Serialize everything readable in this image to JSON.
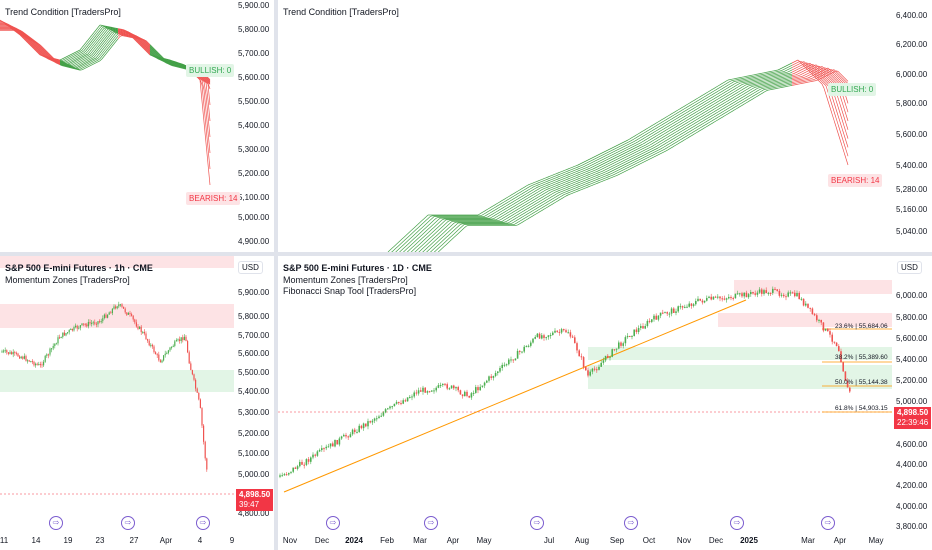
{
  "colors": {
    "bull": "#43a047",
    "bear": "#ef5350",
    "amber": "#fbc02d",
    "fib": "#ff9800",
    "event": "#7b5ccf",
    "grid": "#e0e3eb"
  },
  "tl": {
    "title": "Trend Condition [TradersPro]",
    "yticks": [
      "5,900.00",
      "5,800.00",
      "5,700.00",
      "5,600.00",
      "5,500.00",
      "5,400.00",
      "5,300.00",
      "5,200.00",
      "5,100.00",
      "5,000.00",
      "4,900.00"
    ],
    "bull_badge": "BULLISH: 0",
    "bear_badge": "BEARISH: 14"
  },
  "tr": {
    "title": "Trend Condition [TradersPro]",
    "yticks": [
      "6,400.00",
      "6,200.00",
      "6,000.00",
      "5,800.00",
      "5,600.00",
      "5,400.00",
      "5,280.00",
      "5,160.00",
      "5,040.00"
    ],
    "bull_badge": "BULLISH: 0",
    "bear_badge": "BEARISH: 14"
  },
  "bl": {
    "title": "S&P 500 E-mini Futures · 1h · CME",
    "indicator1": "Momentum Zones [TradersPro]",
    "currency": "USD",
    "yticks": [
      "5,900.00",
      "5,800.00",
      "5,700.00",
      "5,600.00",
      "5,500.00",
      "5,400.00",
      "5,300.00",
      "5,200.00",
      "5,100.00",
      "5,000.00",
      "4,800.00"
    ],
    "price": "4,898.50",
    "countdown": "39:47",
    "xticks": [
      "11",
      "14",
      "19",
      "23",
      "27",
      "Apr",
      "4",
      "9"
    ]
  },
  "br": {
    "title": "S&P 500 E-mini Futures · 1D · CME",
    "indicator1": "Momentum Zones [TradersPro]",
    "indicator2": "Fibonacci Snap Tool [TradersPro]",
    "currency": "USD",
    "yticks": [
      "6,000.00",
      "5,800.00",
      "5,600.00",
      "5,400.00",
      "5,200.00",
      "5,000.00",
      "4,800.00",
      "4,600.00",
      "4,400.00",
      "4,200.00",
      "4,000.00",
      "3,800.00"
    ],
    "price": "4,898.50",
    "countdown": "22:39:46",
    "xticks": [
      "Nov",
      "Dec",
      "2024",
      "Feb",
      "Mar",
      "Apr",
      "May",
      "Jul",
      "Aug",
      "Sep",
      "Oct",
      "Nov",
      "Dec",
      "2025",
      "Mar",
      "Apr",
      "May"
    ],
    "fib_levels": [
      {
        "ratio": "23.6%",
        "price": "55,684.06"
      },
      {
        "ratio": "38.2%",
        "price": "55,389.60"
      },
      {
        "ratio": "50.0%",
        "price": "55,144.38"
      },
      {
        "ratio": "61.8%",
        "price": "54,903.15"
      }
    ]
  }
}
